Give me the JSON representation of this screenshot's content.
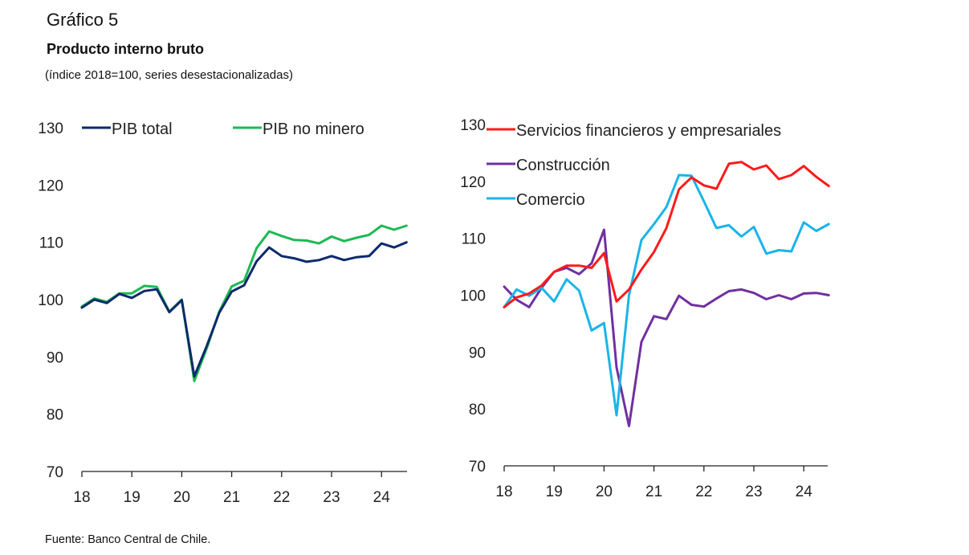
{
  "header": {
    "title": "Gráfico 5",
    "subtitle": "Producto interno bruto",
    "units": "(índice 2018=100, series desestacionalizadas)"
  },
  "footer": {
    "source": "Fuente: Banco Central de Chile."
  },
  "chart_data": [
    {
      "type": "line",
      "title": "",
      "xlabel": "",
      "ylabel": "",
      "ylim": [
        70,
        130
      ],
      "yticks": [
        70,
        80,
        90,
        100,
        110,
        120,
        130
      ],
      "xticks": [
        "18",
        "19",
        "20",
        "21",
        "22",
        "23",
        "24"
      ],
      "frequency": "quarterly",
      "x_start": "2018Q1",
      "x_end": "2024Q3",
      "grid": false,
      "legend": "top",
      "series": [
        {
          "name": "PIB total",
          "color": "#0d2a6b",
          "values": [
            98.6,
            100.0,
            99.4,
            101.0,
            100.3,
            101.5,
            101.8,
            97.8,
            99.9,
            86.6,
            91.9,
            97.7,
            101.4,
            102.5,
            106.7,
            109.1,
            107.6,
            107.2,
            106.6,
            106.9,
            107.6,
            106.9,
            107.4,
            107.6,
            109.8,
            109.1,
            110.0
          ]
        },
        {
          "name": "PIB no minero",
          "color": "#1db954",
          "values": [
            98.8,
            100.2,
            99.6,
            101.1,
            101.1,
            102.4,
            102.2,
            97.9,
            100.0,
            85.8,
            91.5,
            97.9,
            102.3,
            103.3,
            109.0,
            111.9,
            111.1,
            110.4,
            110.3,
            109.8,
            111.0,
            110.2,
            110.8,
            111.3,
            112.9,
            112.2,
            112.9
          ]
        }
      ]
    },
    {
      "type": "line",
      "title": "",
      "xlabel": "",
      "ylabel": "",
      "ylim": [
        70,
        130
      ],
      "yticks": [
        70,
        80,
        90,
        100,
        110,
        120,
        130
      ],
      "xticks": [
        "18",
        "19",
        "20",
        "21",
        "22",
        "23",
        "24"
      ],
      "frequency": "quarterly",
      "x_start": "2018Q1",
      "x_end": "2024Q3",
      "grid": false,
      "legend": "top-left",
      "series": [
        {
          "name": "Servicios financieros y empresariales",
          "color": "#ff1a1a",
          "values": [
            97.9,
            99.6,
            100.3,
            101.7,
            104.1,
            105.2,
            105.2,
            104.8,
            107.4,
            98.9,
            101.0,
            104.5,
            107.6,
            111.8,
            118.6,
            120.7,
            119.3,
            118.7,
            123.1,
            123.4,
            122.1,
            122.8,
            120.4,
            121.1,
            122.7,
            120.8,
            119.2
          ]
        },
        {
          "name": "Construcción",
          "color": "#7030a0",
          "values": [
            101.5,
            99.2,
            97.9,
            101.3,
            104.1,
            104.8,
            103.7,
            105.6,
            111.5,
            87.3,
            77.0,
            91.8,
            96.3,
            95.8,
            99.9,
            98.3,
            98.0,
            99.4,
            100.7,
            101.0,
            100.4,
            99.3,
            100.0,
            99.3,
            100.3,
            100.4,
            100.0
          ]
        },
        {
          "name": "Comercio",
          "color": "#1ab4e8",
          "values": [
            97.9,
            101.0,
            99.9,
            101.3,
            98.9,
            102.8,
            100.8,
            93.8,
            95.1,
            78.9,
            100.0,
            109.7,
            112.5,
            115.5,
            121.1,
            121.0,
            116.5,
            111.8,
            112.3,
            110.3,
            112.0,
            107.3,
            107.9,
            107.7,
            112.8,
            111.3,
            112.5
          ]
        }
      ]
    }
  ]
}
